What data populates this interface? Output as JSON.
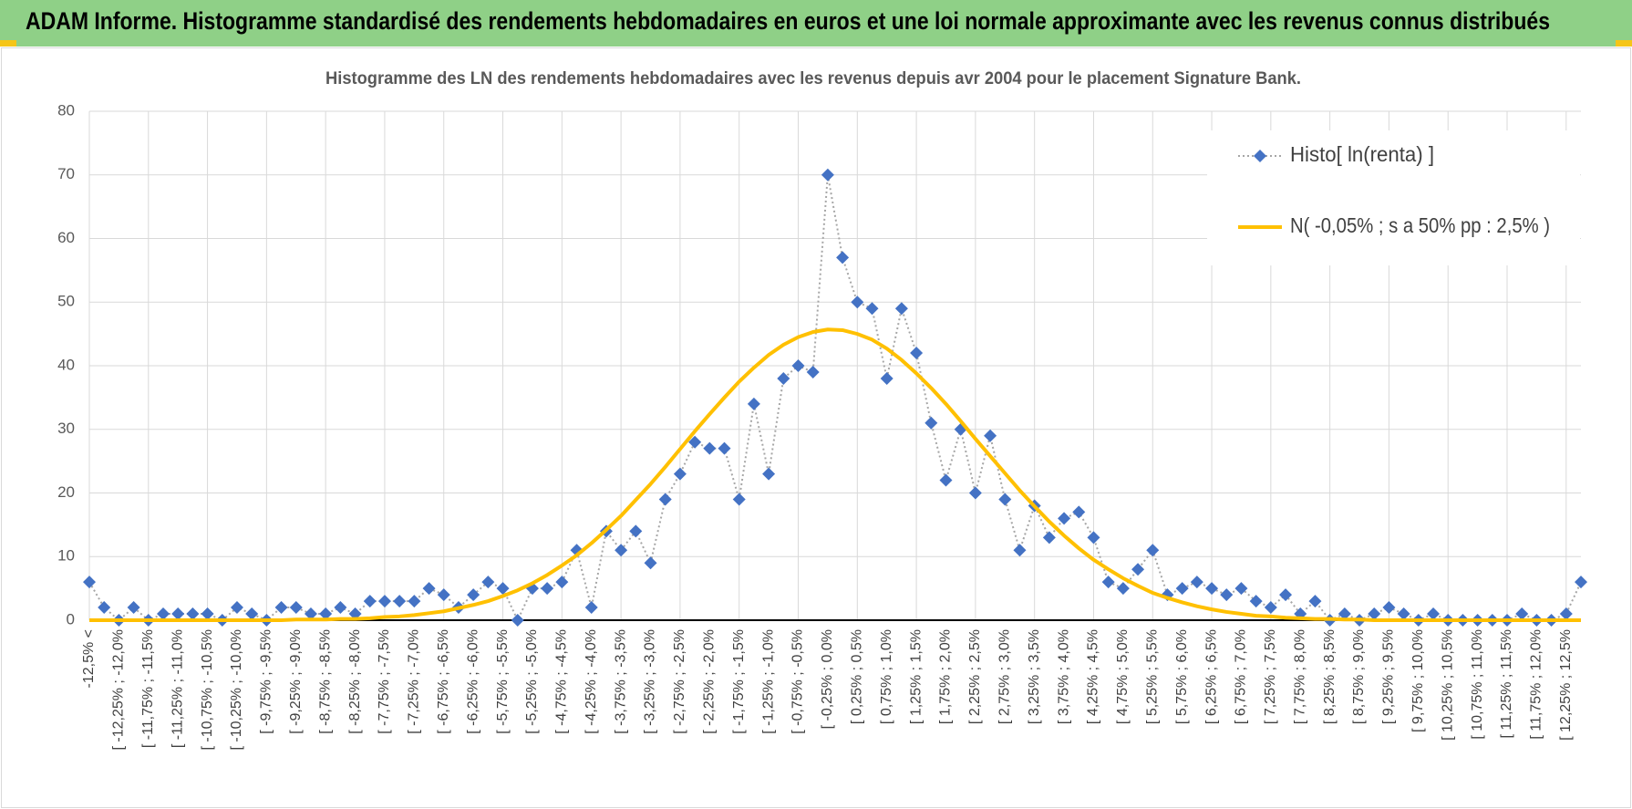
{
  "header": {
    "title": "ADAM Informe. Histogramme standardisé des rendements hebdomadaires en euros et une loi normale approximante avec les revenus connus distribués"
  },
  "chart_data": {
    "type": "line",
    "title": "Histogramme des LN des rendements hebdomadaires avec les revenus depuis avr 2004 pour le placement Signature Bank.",
    "categories": [
      "-12,5% <",
      null,
      "[ -12,25% ; -12,0%",
      null,
      "[ -11,75% ; -11,5%",
      null,
      "[ -11,25% ; -11,0%",
      null,
      "[ -10,75% ; -10,5%",
      null,
      "[ -10,25% ; -10,0%",
      null,
      "[ -9,75% ; -9,5%",
      null,
      "[ -9,25% ; -9,0%",
      null,
      "[ -8,75% ; -8,5%",
      null,
      "[ -8,25% ; -8,0%",
      null,
      "[ -7,75% ; -7,5%",
      null,
      "[ -7,25% ; -7,0%",
      null,
      "[ -6,75% ; -6,5%",
      null,
      "[ -6,25% ; -6,0%",
      null,
      "[ -5,75% ; -5,5%",
      null,
      "[ -5,25% ; -5,0%",
      null,
      "[ -4,75% ; -4,5%",
      null,
      "[ -4,25% ; -4,0%",
      null,
      "[ -3,75% ; -3,5%",
      null,
      "[ -3,25% ; -3,0%",
      null,
      "[ -2,75% ; -2,5%",
      null,
      "[ -2,25% ; -2,0%",
      null,
      "[ -1,75% ; -1,5%",
      null,
      "[ -1,25% ; -1,0%",
      null,
      "[ -0,75% ; -0,5%",
      null,
      "[ -0,25% ; 0,0%",
      null,
      "[ 0,25% ; 0,5%",
      null,
      "[ 0,75% ; 1,0%",
      null,
      "[ 1,25% ; 1,5%",
      null,
      "[ 1,75% ; 2,0%",
      null,
      "[ 2,25% ; 2,5%",
      null,
      "[ 2,75% ; 3,0%",
      null,
      "[ 3,25% ; 3,5%",
      null,
      "[ 3,75% ; 4,0%",
      null,
      "[ 4,25% ; 4,5%",
      null,
      "[ 4,75% ; 5,0%",
      null,
      "[ 5,25% ; 5,5%",
      null,
      "[ 5,75% ; 6,0%",
      null,
      "[ 6,25% ; 6,5%",
      null,
      "[ 6,75% ; 7,0%",
      null,
      "[ 7,25% ; 7,5%",
      null,
      "[ 7,75% ; 8,0%",
      null,
      "[ 8,25% ; 8,5%",
      null,
      "[ 8,75% ; 9,0%",
      null,
      "[ 9,25% ; 9,5%",
      null,
      "[ 9,75% ; 10,0%",
      null,
      "[ 10,25% ; 10,5%",
      null,
      "[ 10,75% ; 11,0%",
      null,
      "[ 11,25% ; 11,5%",
      null,
      "[ 11,75% ; 12,0%",
      null,
      "[ 12,25% ; 12,5%",
      null
    ],
    "series": [
      {
        "name": "Histo[ ln(renta) ]",
        "color": "#4472c4",
        "line_color": "#a6a6a6",
        "line_style": "dotted",
        "marker": "diamond",
        "values": [
          6,
          2,
          0,
          2,
          0,
          1,
          1,
          1,
          1,
          0,
          2,
          1,
          0,
          2,
          2,
          1,
          1,
          2,
          1,
          3,
          3,
          3,
          3,
          5,
          4,
          2,
          4,
          6,
          5,
          0,
          5,
          5,
          6,
          11,
          2,
          14,
          11,
          14,
          9,
          19,
          23,
          28,
          27,
          27,
          19,
          34,
          23,
          38,
          40,
          39,
          70,
          57,
          50,
          49,
          38,
          49,
          42,
          31,
          22,
          30,
          20,
          29,
          19,
          11,
          18,
          13,
          16,
          17,
          13,
          6,
          5,
          8,
          11,
          4,
          5,
          6,
          5,
          4,
          5,
          3,
          2,
          4,
          1,
          3,
          0,
          1,
          0,
          1,
          2,
          1,
          0,
          1,
          0,
          0,
          0,
          0,
          0,
          1,
          0,
          0,
          1,
          6
        ]
      },
      {
        "name": "N( -0,05% ; s a 50% pp : 2,5% )",
        "color": "#ffc000",
        "line_style": "solid",
        "marker": "none",
        "values": [
          0,
          0,
          0,
          0,
          0,
          0,
          0,
          0,
          0,
          0,
          0,
          0,
          0,
          0,
          0.1,
          0.1,
          0.1,
          0.2,
          0.2,
          0.3,
          0.5,
          0.6,
          0.8,
          1.1,
          1.4,
          1.9,
          2.4,
          3.0,
          3.8,
          4.7,
          5.8,
          7.1,
          8.6,
          10.2,
          12.1,
          14.2,
          16.4,
          18.9,
          21.4,
          24.1,
          26.9,
          29.7,
          32.4,
          35.0,
          37.5,
          39.7,
          41.7,
          43.3,
          44.5,
          45.3,
          45.7,
          45.6,
          45.0,
          44.1,
          42.7,
          40.9,
          38.8,
          36.5,
          34.0,
          31.3,
          28.5,
          25.8,
          23.1,
          20.4,
          17.9,
          15.5,
          13.3,
          11.3,
          9.5,
          8.0,
          6.6,
          5.4,
          4.3,
          3.5,
          2.8,
          2.2,
          1.7,
          1.3,
          1.0,
          0.7,
          0.6,
          0.4,
          0.3,
          0.2,
          0.2,
          0.1,
          0.1,
          0,
          0,
          0,
          0,
          0,
          0,
          0,
          0,
          0,
          0,
          0,
          0,
          0,
          0,
          0
        ]
      }
    ],
    "ylim": [
      0,
      80
    ],
    "yticks": [
      0,
      10,
      20,
      30,
      40,
      50,
      60,
      70,
      80
    ],
    "grid": true,
    "legend": "top-right"
  }
}
